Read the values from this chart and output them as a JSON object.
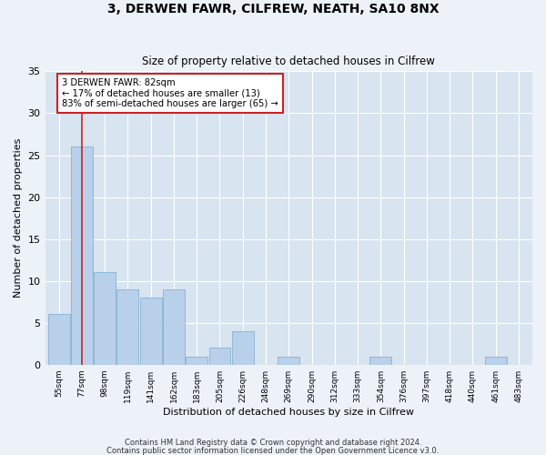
{
  "title": "3, DERWEN FAWR, CILFREW, NEATH, SA10 8NX",
  "subtitle": "Size of property relative to detached houses in Cilfrew",
  "xlabel": "Distribution of detached houses by size in Cilfrew",
  "ylabel": "Number of detached properties",
  "bins": [
    "55sqm",
    "77sqm",
    "98sqm",
    "119sqm",
    "141sqm",
    "162sqm",
    "183sqm",
    "205sqm",
    "226sqm",
    "248sqm",
    "269sqm",
    "290sqm",
    "312sqm",
    "333sqm",
    "354sqm",
    "376sqm",
    "397sqm",
    "418sqm",
    "440sqm",
    "461sqm",
    "483sqm"
  ],
  "values": [
    6,
    26,
    11,
    9,
    8,
    9,
    1,
    2,
    4,
    0,
    1,
    0,
    0,
    0,
    1,
    0,
    0,
    0,
    0,
    1,
    0
  ],
  "bar_color": "#b8d0ea",
  "bar_edge_color": "#7aaad0",
  "vline_x_index": 1,
  "vline_color": "#cc2222",
  "ylim": [
    0,
    35
  ],
  "yticks": [
    0,
    5,
    10,
    15,
    20,
    25,
    30,
    35
  ],
  "annotation_text": "3 DERWEN FAWR: 82sqm\n← 17% of detached houses are smaller (13)\n83% of semi-detached houses are larger (65) →",
  "annotation_box_color": "#cc2222",
  "footer1": "Contains HM Land Registry data © Crown copyright and database right 2024.",
  "footer2": "Contains public sector information licensed under the Open Government Licence v3.0.",
  "bg_color": "#edf2f9",
  "plot_bg_color": "#d8e4f0"
}
